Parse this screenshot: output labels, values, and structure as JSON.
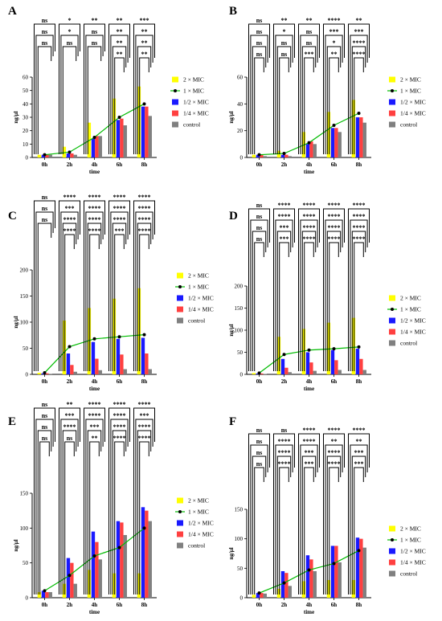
{
  "figure": {
    "legend_labels": [
      "2 × MIC",
      "1 × MIC",
      "1/2 × MIC",
      "1/4 × MIC",
      "control"
    ],
    "colors": {
      "2xMIC": "#ffff00",
      "1xMIC_line": "#00bb00",
      "1xMIC_marker": "#000000",
      "halfMIC": "#1a1aff",
      "quarterMIC": "#ff4040",
      "control": "#808080"
    }
  },
  "chart_data": [
    {
      "panel": "A",
      "type": "bar",
      "categories": [
        "0h",
        "2h",
        "4h",
        "6h",
        "8h"
      ],
      "xlabel": "time",
      "ylabel": "ng/μl",
      "ylim": [
        0,
        60
      ],
      "yticks": [
        0,
        10,
        20,
        30,
        40,
        50,
        60
      ],
      "series": [
        {
          "name": "2 × MIC",
          "values": [
            2,
            8,
            26,
            44,
            53
          ]
        },
        {
          "name": "1 × MIC",
          "values": [
            2,
            4,
            15,
            30,
            40
          ]
        },
        {
          "name": "1/2 × MIC",
          "values": [
            2,
            3,
            14,
            28,
            38
          ]
        },
        {
          "name": "1/4 × MIC",
          "values": [
            2,
            3,
            16,
            29,
            38
          ]
        },
        {
          "name": "control",
          "values": [
            2,
            2,
            16,
            24,
            31
          ]
        }
      ],
      "significance": [
        [
          "ns",
          "ns",
          "ns"
        ],
        [
          "*",
          "*",
          "ns"
        ],
        [
          "**",
          "ns",
          "ns"
        ],
        [
          "**",
          "**",
          "**",
          "**"
        ],
        [
          "***",
          "**",
          "**",
          "**"
        ]
      ]
    },
    {
      "panel": "B",
      "type": "bar",
      "categories": [
        "0h",
        "2h",
        "4h",
        "6h",
        "8h"
      ],
      "xlabel": "time",
      "ylabel": "ng/μl",
      "ylim": [
        0,
        60
      ],
      "yticks": [
        0,
        20,
        40,
        60
      ],
      "series": [
        {
          "name": "2 × MIC",
          "values": [
            2,
            5,
            19,
            34,
            43
          ]
        },
        {
          "name": "1 × MIC",
          "values": [
            2,
            3,
            11,
            24,
            33
          ]
        },
        {
          "name": "1/2 × MIC",
          "values": [
            2,
            2,
            10,
            22,
            30
          ]
        },
        {
          "name": "1/4 × MIC",
          "values": [
            2,
            2,
            12,
            22,
            30
          ]
        },
        {
          "name": "control",
          "values": [
            1,
            1,
            10,
            19,
            26
          ]
        }
      ],
      "significance": [
        [
          "ns",
          "ns",
          "ns",
          "ns"
        ],
        [
          "**",
          "*",
          "ns",
          "ns"
        ],
        [
          "**",
          "ns",
          "ns",
          "***"
        ],
        [
          "****",
          "***",
          "*",
          "**"
        ],
        [
          "**",
          "***",
          "****",
          "****"
        ]
      ]
    },
    {
      "panel": "C",
      "type": "bar",
      "categories": [
        "0h",
        "2h",
        "4h",
        "6h",
        "8h"
      ],
      "xlabel": "time",
      "ylabel": "ng/μl",
      "ylim": [
        0,
        200
      ],
      "yticks": [
        0,
        50,
        100,
        150,
        200
      ],
      "series": [
        {
          "name": "2 × MIC",
          "values": [
            3,
            103,
            127,
            145,
            165
          ]
        },
        {
          "name": "1 × MIC",
          "values": [
            3,
            53,
            68,
            72,
            76
          ]
        },
        {
          "name": "1/2 × MIC",
          "values": [
            2,
            40,
            62,
            68,
            70
          ]
        },
        {
          "name": "1/4 × MIC",
          "values": [
            2,
            18,
            30,
            38,
            40
          ]
        },
        {
          "name": "control",
          "values": [
            1,
            5,
            8,
            10,
            10
          ]
        }
      ],
      "significance": [
        [
          "ns",
          "ns",
          "ns"
        ],
        [
          "****",
          "***",
          "****",
          "****"
        ],
        [
          "****",
          "****",
          "****",
          "****"
        ],
        [
          "****",
          "****",
          "****",
          "***"
        ],
        [
          "****",
          "****",
          "****",
          "****"
        ]
      ]
    },
    {
      "panel": "D",
      "type": "bar",
      "categories": [
        "0h",
        "2h",
        "4h",
        "6h",
        "8h"
      ],
      "xlabel": "time",
      "ylabel": "ng/μl",
      "ylim": [
        0,
        200
      ],
      "yticks": [
        0,
        50,
        100,
        150,
        200
      ],
      "series": [
        {
          "name": "2 × MIC",
          "values": [
            3,
            85,
            103,
            117,
            128
          ]
        },
        {
          "name": "1 × MIC",
          "values": [
            3,
            45,
            55,
            58,
            62
          ]
        },
        {
          "name": "1/2 × MIC",
          "values": [
            2,
            35,
            50,
            55,
            58
          ]
        },
        {
          "name": "1/4 × MIC",
          "values": [
            2,
            15,
            27,
            32,
            35
          ]
        },
        {
          "name": "control",
          "values": [
            1,
            5,
            8,
            10,
            10
          ]
        }
      ],
      "significance": [
        [
          "ns",
          "ns",
          "ns",
          "ns"
        ],
        [
          "****",
          "****",
          "***",
          "***"
        ],
        [
          "****",
          "****",
          "****",
          "****"
        ],
        [
          "****",
          "****",
          "****",
          "****"
        ],
        [
          "****",
          "****",
          "****",
          "****"
        ]
      ]
    },
    {
      "panel": "E",
      "type": "bar",
      "categories": [
        "0h",
        "2h",
        "4h",
        "6h",
        "8h"
      ],
      "xlabel": "time",
      "ylabel": "ng/μl",
      "ylim": [
        0,
        150
      ],
      "yticks": [
        0,
        50,
        100,
        150
      ],
      "series": [
        {
          "name": "2 × MIC",
          "values": [
            8,
            20,
            40,
            35,
            35
          ]
        },
        {
          "name": "1 × MIC",
          "values": [
            10,
            32,
            60,
            72,
            100
          ]
        },
        {
          "name": "1/2 × MIC",
          "values": [
            10,
            57,
            95,
            110,
            130
          ]
        },
        {
          "name": "1/4 × MIC",
          "values": [
            8,
            50,
            80,
            108,
            125
          ]
        },
        {
          "name": "control",
          "values": [
            8,
            20,
            55,
            90,
            110
          ]
        }
      ],
      "significance": [
        [
          "ns",
          "ns",
          "ns",
          "ns"
        ],
        [
          "**",
          "***",
          "****",
          "ns"
        ],
        [
          "****",
          "****",
          "***",
          "**"
        ],
        [
          "****",
          "****",
          "****",
          "****"
        ],
        [
          "****",
          "***",
          "****",
          "****"
        ]
      ]
    },
    {
      "panel": "F",
      "type": "bar",
      "categories": [
        "0h",
        "2h",
        "4h",
        "6h",
        "8h"
      ],
      "xlabel": "time",
      "ylabel": "ng/μl",
      "ylim": [
        0,
        150
      ],
      "yticks": [
        0,
        50,
        100,
        150
      ],
      "series": [
        {
          "name": "2 × MIC",
          "values": [
            5,
            15,
            28,
            30,
            30
          ]
        },
        {
          "name": "1 × MIC",
          "values": [
            8,
            25,
            47,
            58,
            80
          ]
        },
        {
          "name": "1/2 × MIC",
          "values": [
            8,
            45,
            72,
            88,
            102
          ]
        },
        {
          "name": "1/4 × MIC",
          "values": [
            8,
            42,
            65,
            88,
            100
          ]
        },
        {
          "name": "control",
          "values": [
            7,
            20,
            45,
            60,
            85
          ]
        }
      ],
      "significance": [
        [
          "ns",
          "ns",
          "ns",
          "ns"
        ],
        [
          "ns",
          "****",
          "****",
          "****"
        ],
        [
          "****",
          "****",
          "***",
          "***"
        ],
        [
          "****",
          "**",
          "****",
          "****"
        ],
        [
          "****",
          "**",
          "***",
          "***"
        ]
      ]
    }
  ]
}
